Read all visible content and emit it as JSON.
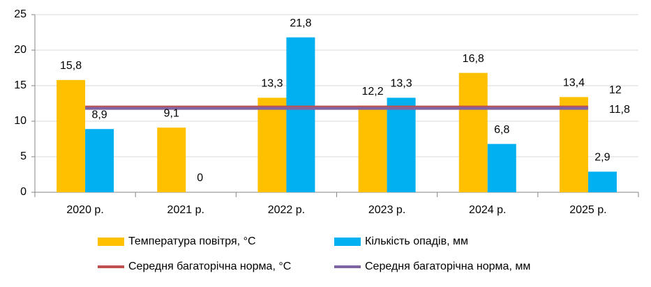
{
  "chart_data": {
    "type": "bar",
    "categories": [
      "2020 р.",
      "2021 р.",
      "2022 р.",
      "2023 р.",
      "2024 р.",
      "2025 р."
    ],
    "series": [
      {
        "name": "Температура повітря, °С",
        "type": "bar",
        "color": "#FFC000",
        "values": [
          15.8,
          9.1,
          13.3,
          12.2,
          16.8,
          13.4
        ],
        "value_labels": [
          "15,8",
          "9,1",
          "13,3",
          "12,2",
          "16,8",
          "13,4"
        ]
      },
      {
        "name": "Кількість опадів, мм",
        "type": "bar",
        "color": "#00B0F0",
        "values": [
          8.9,
          0,
          21.8,
          13.3,
          6.8,
          2.9
        ],
        "value_labels": [
          "8,9",
          "0",
          "21,8",
          "13,3",
          "6,8",
          "2,9"
        ]
      },
      {
        "name": "Середня багаторічна норма, °С",
        "type": "line",
        "color": "#C0504D",
        "values": [
          12,
          12,
          12,
          12,
          12,
          12
        ]
      },
      {
        "name": "Середня багаторічна норма, мм",
        "type": "line",
        "color": "#8064A2",
        "values": [
          11.8,
          11.8,
          11.8,
          11.8,
          11.8,
          11.8
        ],
        "value_labels": [
          null,
          null,
          null,
          null,
          null,
          "11,8"
        ]
      }
    ],
    "ylim": [
      0,
      25
    ],
    "yticks": [
      0,
      5,
      10,
      15,
      20,
      25
    ],
    "grid": true,
    "legend": "bottom"
  }
}
